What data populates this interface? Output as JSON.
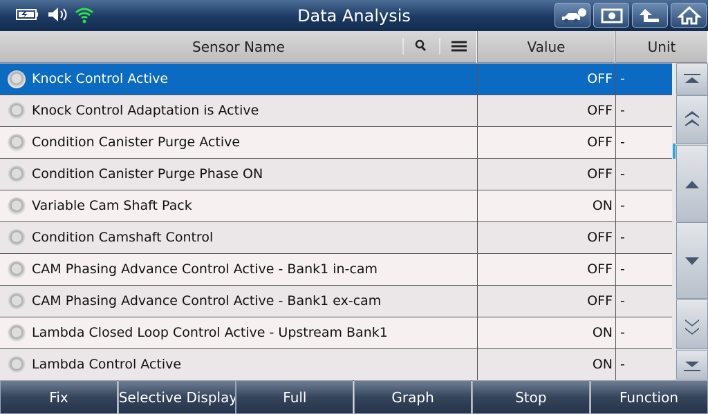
{
  "header": {
    "title": "Data Analysis"
  },
  "table": {
    "columns": [
      "Sensor Name",
      "Value",
      "Unit"
    ],
    "rows": [
      [
        "Knock Control Active",
        "OFF",
        "-"
      ],
      [
        "Knock Control Adaptation is Active",
        "OFF",
        "-"
      ],
      [
        "Condition Canister Purge Active",
        "OFF",
        "-"
      ],
      [
        "Condition Canister Purge Phase ON",
        "OFF",
        "-"
      ],
      [
        "Variable Cam Shaft Pack",
        "ON",
        "-"
      ],
      [
        "Condition Camshaft Control",
        "OFF",
        "-"
      ],
      [
        "CAM Phasing Advance Control Active - Bank1 in-cam",
        "OFF",
        "-"
      ],
      [
        "CAM Phasing Advance Control Active - Bank1 ex-cam",
        "OFF",
        "-"
      ],
      [
        "Lambda Closed Loop Control Active - Upstream Bank1",
        "ON",
        "-"
      ],
      [
        "Lambda Control Active",
        "ON",
        "-"
      ]
    ]
  },
  "buttons": [
    "Fix",
    "Selective Display",
    "Full",
    "Graph",
    "Stop",
    "Function"
  ]
}
